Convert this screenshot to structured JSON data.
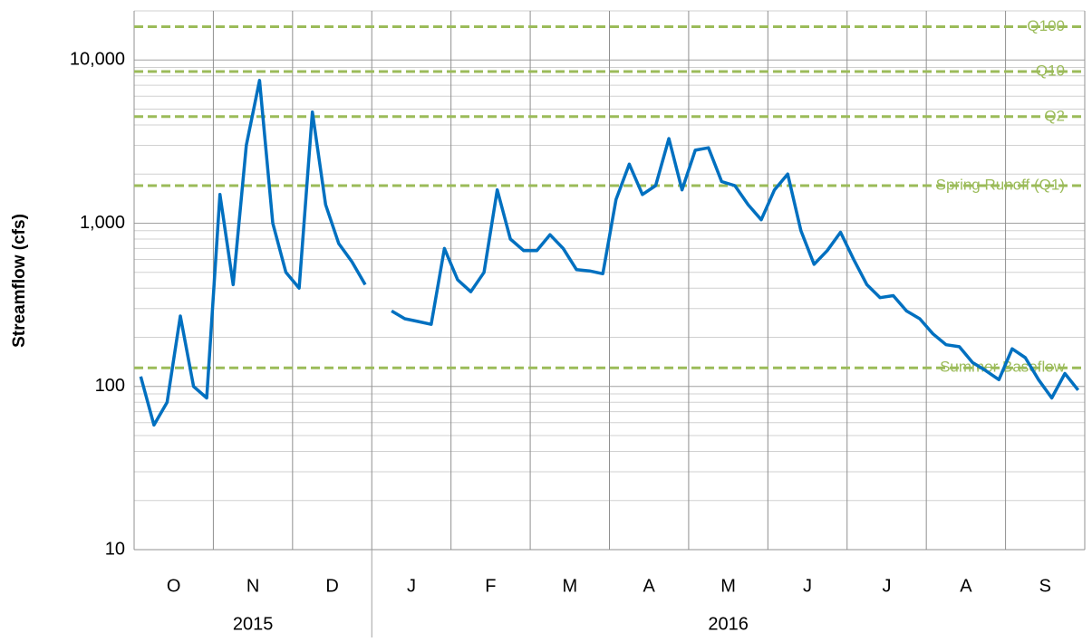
{
  "chart_data": {
    "type": "line",
    "y_label": "Streamflow (cfs)",
    "categories": [
      "O",
      "N",
      "D",
      "J",
      "F",
      "M",
      "A",
      "M",
      "J",
      "J",
      "A",
      "S"
    ],
    "years": [
      {
        "label": "2015",
        "span": 3
      },
      {
        "label": "2016",
        "span": 9
      }
    ],
    "series": [
      {
        "name": "Streamflow",
        "color": "#0070c0",
        "values": [
          [
            115,
            58,
            80,
            270,
            100,
            85
          ],
          [
            1500,
            420,
            3000,
            7500,
            1000,
            500
          ],
          [
            400,
            4800,
            1300,
            750,
            580,
            420
          ],
          [
            null,
            290,
            260,
            250,
            240,
            700
          ],
          [
            450,
            380,
            500,
            1600,
            800,
            680
          ],
          [
            680,
            850,
            700,
            520,
            510,
            490
          ],
          [
            1400,
            2300,
            1500,
            1700,
            3300,
            1600
          ],
          [
            2800,
            2900,
            1800,
            1700,
            1300,
            1050
          ],
          [
            1600,
            2000,
            900,
            560,
            680,
            880
          ],
          [
            600,
            420,
            350,
            360,
            290,
            260
          ],
          [
            210,
            180,
            175,
            140,
            125,
            110
          ],
          [
            170,
            150,
            110,
            85,
            120,
            95
          ]
        ]
      }
    ],
    "reference_lines": [
      {
        "label": "Q100",
        "value": 16000
      },
      {
        "label": "Q10",
        "value": 8500
      },
      {
        "label": "Q2",
        "value": 4500
      },
      {
        "label": "Spring Runoff (Q1)",
        "value": 1700
      },
      {
        "label": "Summer Baseflow",
        "value": 130
      }
    ],
    "reference_color": "#9bbb59",
    "log_scale": true,
    "minor_grid": true,
    "ylim": [
      10,
      20000
    ],
    "yticks": [
      10,
      100,
      {
        "value": 1000,
        "label": "1,000"
      },
      {
        "value": 10000,
        "label": "10,000"
      }
    ]
  }
}
